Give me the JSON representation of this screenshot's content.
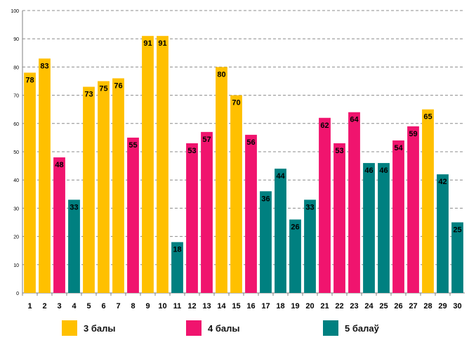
{
  "chart_data": {
    "type": "bar",
    "title": "",
    "xlabel": "",
    "ylabel": "",
    "ylim": [
      0,
      100
    ],
    "yticks": [
      0,
      10,
      20,
      30,
      40,
      50,
      60,
      70,
      80,
      90,
      100
    ],
    "grid": true,
    "categories": [
      "1",
      "2",
      "3",
      "4",
      "5",
      "6",
      "7",
      "8",
      "9",
      "10",
      "11",
      "12",
      "13",
      "14",
      "15",
      "16",
      "17",
      "18",
      "19",
      "20",
      "21",
      "22",
      "23",
      "24",
      "25",
      "26",
      "27",
      "28",
      "29",
      "30"
    ],
    "values": [
      78,
      83,
      48,
      33,
      73,
      75,
      76,
      55,
      91,
      91,
      18,
      53,
      57,
      80,
      70,
      56,
      36,
      44,
      26,
      33,
      62,
      53,
      64,
      46,
      46,
      54,
      59,
      65,
      42,
      25
    ],
    "groups": [
      3,
      3,
      4,
      5,
      3,
      3,
      3,
      4,
      3,
      3,
      5,
      4,
      4,
      3,
      3,
      4,
      5,
      5,
      5,
      5,
      4,
      4,
      4,
      5,
      5,
      4,
      4,
      3,
      5,
      5
    ],
    "legend": [
      {
        "group": 3,
        "label": "3 балы",
        "color": "#FFC000"
      },
      {
        "group": 4,
        "label": "4 балы",
        "color": "#F0146E"
      },
      {
        "group": 5,
        "label": "5 балаў",
        "color": "#008080"
      }
    ],
    "legend_position": "bottom"
  },
  "colors": {
    "grid": "#8c8c8c",
    "axis": "#7f7f7f",
    "label": "#000000"
  }
}
